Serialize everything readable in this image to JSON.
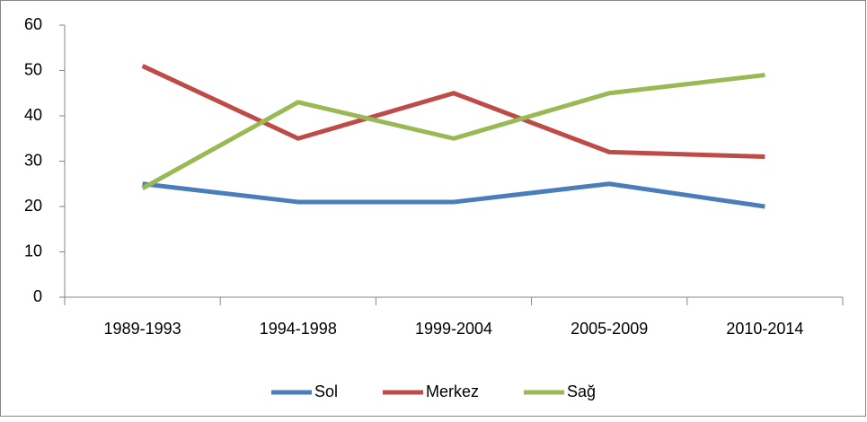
{
  "chart_data": {
    "type": "line",
    "categories": [
      "1989-1993",
      "1994-1998",
      "1999-2004",
      "2005-2009",
      "2010-2014"
    ],
    "series": [
      {
        "name": "Sol",
        "color": "#4a7ebb",
        "values": [
          25,
          21,
          21,
          25,
          20
        ]
      },
      {
        "name": "Merkez",
        "color": "#be4b48",
        "values": [
          51,
          35,
          45,
          32,
          31
        ]
      },
      {
        "name": "Sağ",
        "color": "#98b954",
        "values": [
          24,
          43,
          35,
          45,
          49
        ]
      }
    ],
    "ylim": [
      0,
      60
    ],
    "yticks": [
      0,
      10,
      20,
      30,
      40,
      50,
      60
    ],
    "grid": false,
    "legend": "bottom"
  }
}
